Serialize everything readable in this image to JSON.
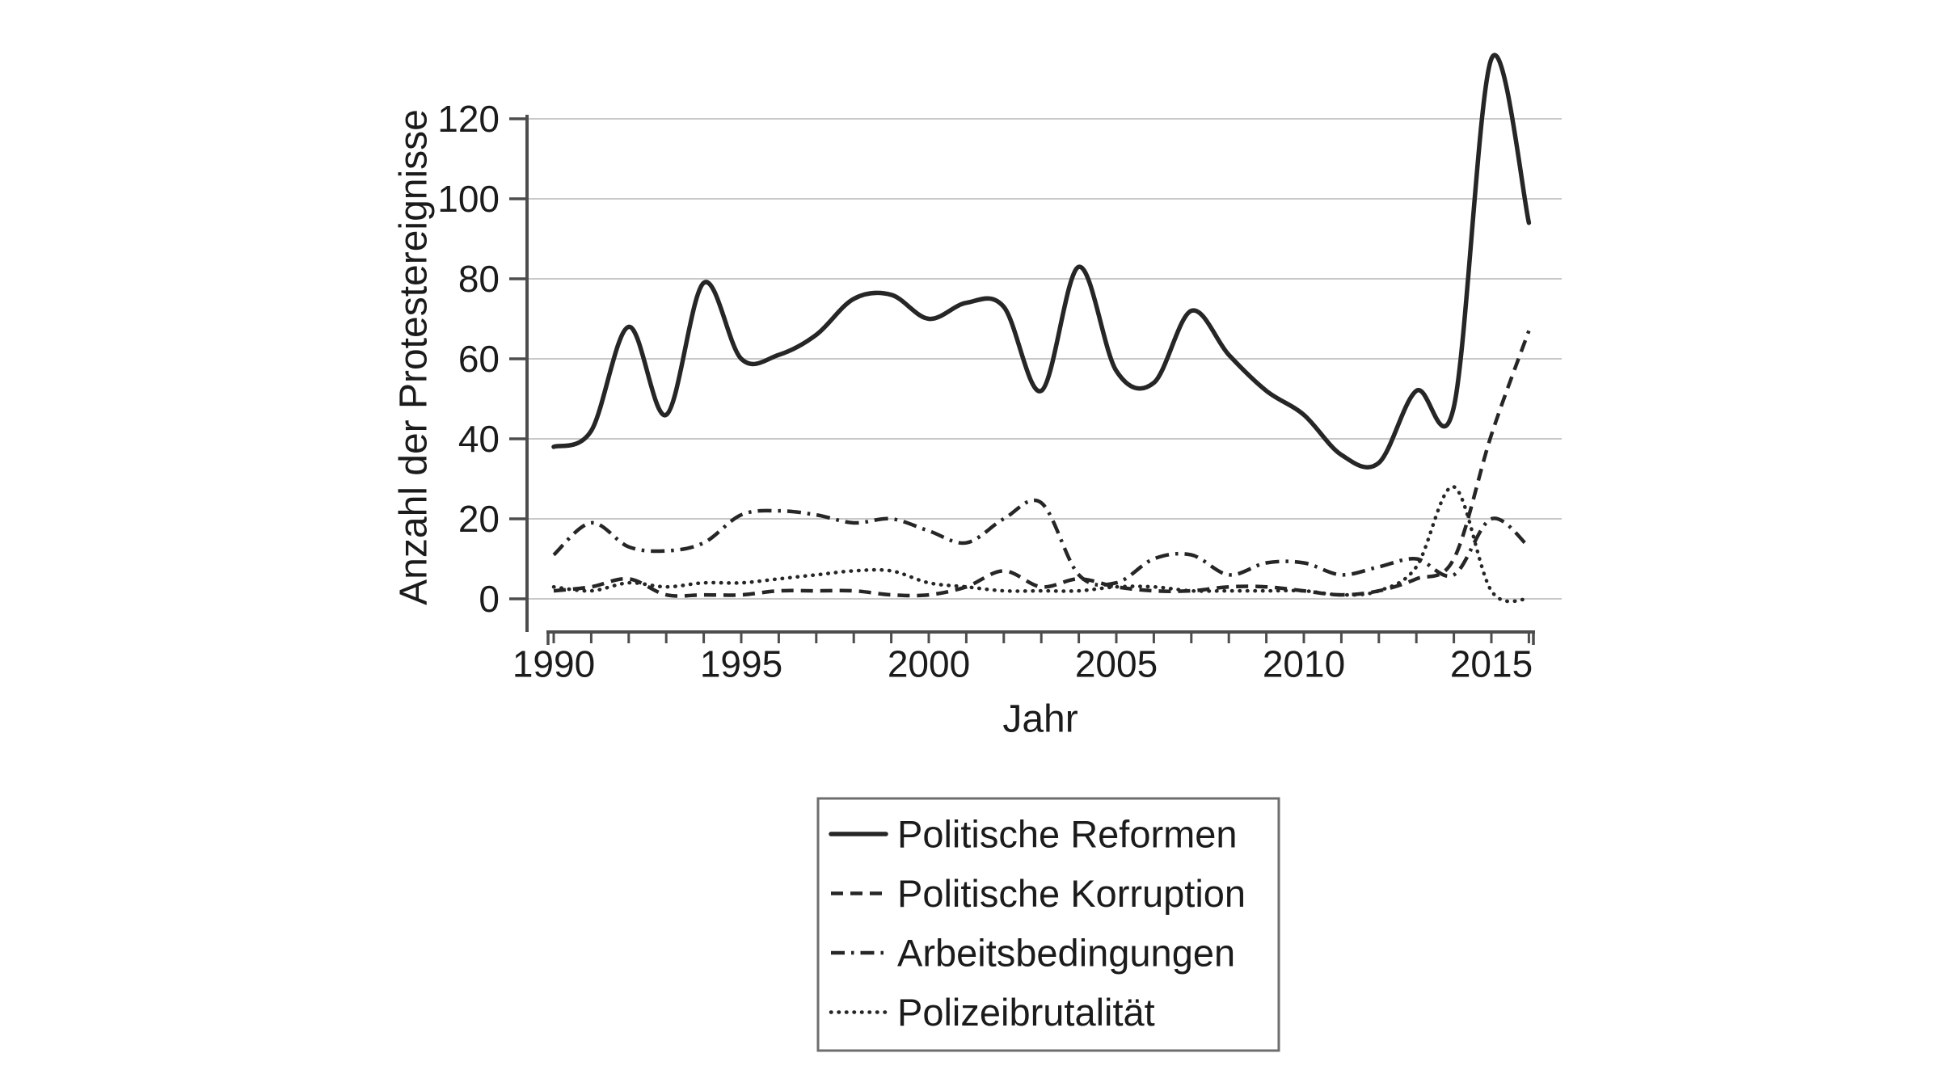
{
  "chart_data": {
    "type": "line",
    "title": "",
    "xlabel": "Jahr",
    "ylabel": "Anzahl der Protestereignisse",
    "x_range": [
      1990,
      2016
    ],
    "ylim": [
      0,
      120
    ],
    "grid": "horizontal",
    "legend_position": "below-center",
    "y_ticks": [
      0,
      20,
      40,
      60,
      80,
      100,
      120
    ],
    "x_ticks_labeled": [
      1990,
      1995,
      2000,
      2005,
      2010,
      2015
    ],
    "x": [
      1990,
      1991,
      1992,
      1993,
      1994,
      1995,
      1996,
      1997,
      1998,
      1999,
      2000,
      2001,
      2002,
      2003,
      2004,
      2005,
      2006,
      2007,
      2008,
      2009,
      2010,
      2011,
      2012,
      2013,
      2014,
      2015,
      2016
    ],
    "series": [
      {
        "name": "Politische Reformen",
        "style": "solid",
        "color": "#262626",
        "values": [
          38,
          42,
          68,
          46,
          79,
          60,
          61,
          66,
          75,
          76,
          70,
          74,
          73,
          52,
          83,
          57,
          54,
          72,
          61,
          52,
          46,
          36,
          34,
          52,
          48,
          135,
          94
        ]
      },
      {
        "name": "Politische Korruption",
        "style": "dashed",
        "color": "#262626",
        "values": [
          2,
          3,
          5,
          1,
          1,
          1,
          2,
          2,
          2,
          1,
          1,
          3,
          7,
          3,
          5,
          3,
          2,
          2,
          3,
          3,
          2,
          1,
          2,
          5,
          10,
          41,
          67
        ]
      },
      {
        "name": "Arbeitsbedingungen",
        "style": "dashdot",
        "color": "#262626",
        "values": [
          11,
          19,
          13,
          12,
          14,
          21,
          22,
          21,
          19,
          20,
          17,
          14,
          20,
          24,
          6,
          4,
          10,
          11,
          6,
          9,
          9,
          6,
          8,
          10,
          6,
          20,
          13
        ]
      },
      {
        "name": "Polizeibrutalität",
        "style": "dotted",
        "color": "#262626",
        "values": [
          3,
          2,
          4,
          3,
          4,
          4,
          5,
          6,
          7,
          7,
          4,
          3,
          2,
          2,
          2,
          3,
          3,
          2,
          2,
          2,
          2,
          1,
          2,
          8,
          28,
          2,
          0
        ]
      }
    ]
  },
  "colors": {
    "background": "#ffffff",
    "grid": "#c8c8c8",
    "axis": "#4d4d4d",
    "text": "#1b1b1b",
    "legend_border": "#6e6e6e"
  }
}
